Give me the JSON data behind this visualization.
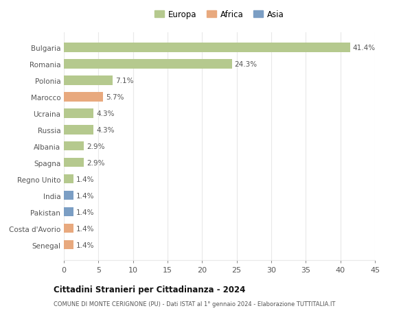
{
  "categories": [
    "Senegal",
    "Costa d'Avorio",
    "Pakistan",
    "India",
    "Regno Unito",
    "Spagna",
    "Albania",
    "Russia",
    "Ucraina",
    "Marocco",
    "Polonia",
    "Romania",
    "Bulgaria"
  ],
  "values": [
    1.4,
    1.4,
    1.4,
    1.4,
    1.4,
    2.9,
    2.9,
    4.3,
    4.3,
    5.7,
    7.1,
    24.3,
    41.4
  ],
  "continent": [
    "Africa",
    "Africa",
    "Asia",
    "Asia",
    "Europa",
    "Europa",
    "Europa",
    "Europa",
    "Europa",
    "Africa",
    "Europa",
    "Europa",
    "Europa"
  ],
  "colors": {
    "Europa": "#b5c98e",
    "Africa": "#e8a97e",
    "Asia": "#7b9ec4"
  },
  "legend_items": [
    "Europa",
    "Africa",
    "Asia"
  ],
  "legend_colors": [
    "#b5c98e",
    "#e8a97e",
    "#7b9ec4"
  ],
  "xlim": [
    0,
    45
  ],
  "xticks": [
    0,
    5,
    10,
    15,
    20,
    25,
    30,
    35,
    40,
    45
  ],
  "title": "Cittadini Stranieri per Cittadinanza - 2024",
  "subtitle": "COMUNE DI MONTE CERIGNONE (PU) - Dati ISTAT al 1° gennaio 2024 - Elaborazione TUTTITALIA.IT",
  "bg_color": "#ffffff",
  "grid_color": "#e8e8e8",
  "bar_height": 0.55
}
